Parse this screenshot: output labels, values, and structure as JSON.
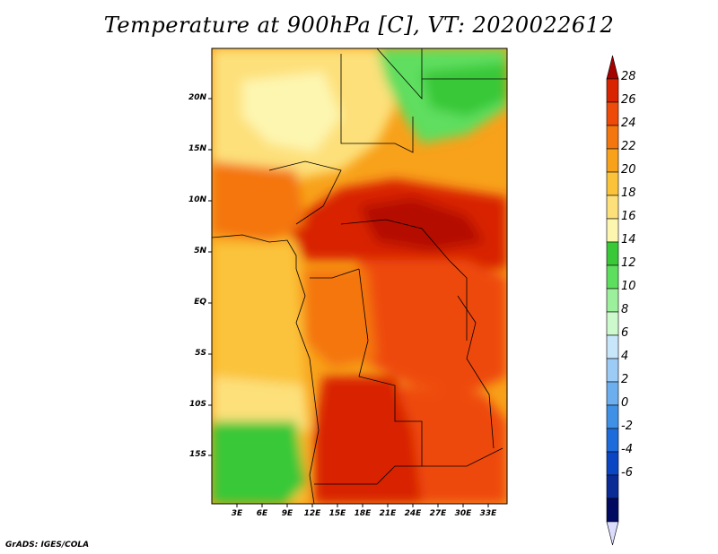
{
  "title": "Temperature at 900hPa [C], VT: 2020022612",
  "credit": "GrADS: IGES/COLA",
  "map": {
    "lat_labels": [
      "20N",
      "15N",
      "10N",
      "5N",
      "EQ",
      "5S",
      "10S",
      "15S"
    ],
    "lon_labels": [
      "3E",
      "6E",
      "9E",
      "12E",
      "15E",
      "18E",
      "21E",
      "24E",
      "27E",
      "30E",
      "33E"
    ]
  },
  "colorbar": {
    "labels": [
      "28",
      "26",
      "24",
      "22",
      "20",
      "18",
      "16",
      "14",
      "12",
      "10",
      "8",
      "6",
      "4",
      "2",
      "0",
      "-2",
      "-4",
      "-6"
    ],
    "colors": [
      "#a50000",
      "#d82400",
      "#ee4a0a",
      "#f4760e",
      "#f8a11a",
      "#fbc33a",
      "#fde07a",
      "#fdf6b0",
      "#38c838",
      "#5ede5e",
      "#9cf09c",
      "#cdfacd",
      "#c8e6fa",
      "#9ccbf5",
      "#6caeee",
      "#4090e6",
      "#1e6cdc",
      "#0a46c4",
      "#0a2a96",
      "#000a60",
      "#dcdcff"
    ]
  }
}
